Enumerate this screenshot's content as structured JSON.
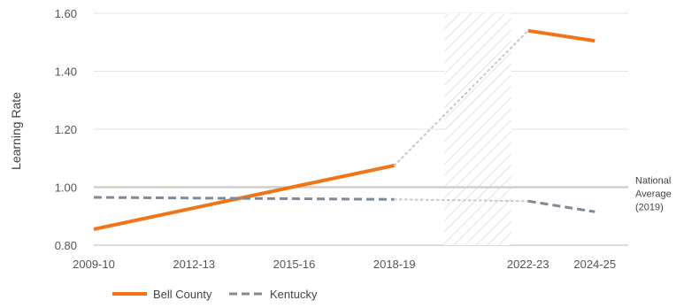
{
  "chart_data": {
    "type": "line",
    "title": "",
    "xlabel": "",
    "ylabel": "Learning Rate",
    "ylim": [
      0.8,
      1.6
    ],
    "yticks": [
      "0.80",
      "1.00",
      "1.20",
      "1.40",
      "1.60"
    ],
    "x_range": [
      2009,
      2025
    ],
    "xticks": [
      {
        "label": "2009-10",
        "x": 2009
      },
      {
        "label": "2012-13",
        "x": 2012
      },
      {
        "label": "2015-16",
        "x": 2015
      },
      {
        "label": "2018-19",
        "x": 2018
      },
      {
        "label": "2022-23",
        "x": 2022
      },
      {
        "label": "2024-25",
        "x": 2024
      }
    ],
    "grid": true,
    "legend_position": "bottom-left",
    "covid_gap": {
      "start": 2019.5,
      "end": 2021.5,
      "pattern": "diagonal-hatch"
    },
    "reference_line": {
      "value": 1.0,
      "label_lines": [
        "National",
        "Average",
        "(2019)"
      ],
      "color": "#cfcfcf"
    },
    "series": [
      {
        "name": "Bell County",
        "color": "#f07418",
        "style": "solid",
        "points": [
          {
            "x": 2009,
            "y": 0.855
          },
          {
            "x": 2018,
            "y": 1.075
          },
          {
            "x": 2022,
            "y": 1.54
          },
          {
            "x": 2024,
            "y": 1.505
          }
        ],
        "gap_after_index": 1
      },
      {
        "name": "Kentucky",
        "color": "#7f8a99",
        "style": "dashed",
        "points": [
          {
            "x": 2009,
            "y": 0.965
          },
          {
            "x": 2018,
            "y": 0.958
          },
          {
            "x": 2022,
            "y": 0.952
          },
          {
            "x": 2024,
            "y": 0.915
          }
        ],
        "gap_after_index": 1
      }
    ]
  }
}
